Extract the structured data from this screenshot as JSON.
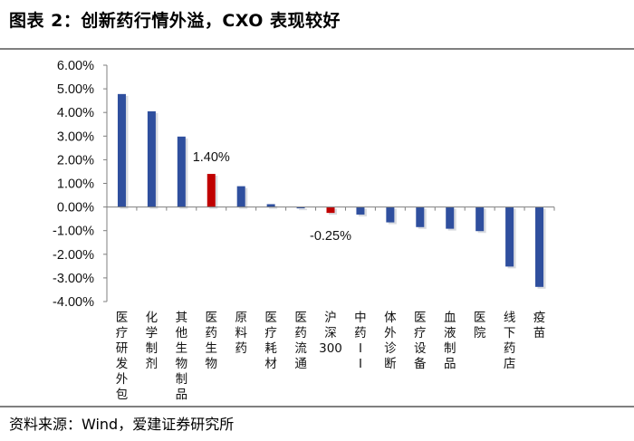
{
  "header": {
    "title": "图表 2：创新药行情外溢，CXO 表现较好"
  },
  "footer": {
    "source": "资料来源：Wind，爱建证券研究所"
  },
  "chart_data": {
    "type": "bar",
    "categories": [
      "医疗研发外包",
      "化学制剂",
      "其他生物制品",
      "医药生物",
      "原料药",
      "医疗耗材",
      "医药流通",
      "沪深300",
      "中药II",
      "体外诊断",
      "医疗设备",
      "血液制品",
      "医院",
      "线下药店",
      "疫苗"
    ],
    "values": [
      4.78,
      4.05,
      2.98,
      1.4,
      0.88,
      0.12,
      -0.03,
      -0.25,
      -0.32,
      -0.65,
      -0.85,
      -0.92,
      -1.02,
      -2.52,
      -3.38
    ],
    "highlight_indices": [
      3,
      7
    ],
    "data_labels": [
      {
        "index": 3,
        "text": "1.40%"
      },
      {
        "index": 7,
        "text": "-0.25%"
      }
    ],
    "yticks": [
      "6.00%",
      "5.00%",
      "4.00%",
      "3.00%",
      "2.00%",
      "1.00%",
      "0.00%",
      "-1.00%",
      "-2.00%",
      "-3.00%",
      "-4.00%"
    ],
    "ylim": [
      -4,
      6
    ],
    "xlabel": "",
    "ylabel": "",
    "grid": false,
    "legend": "none",
    "colors": {
      "bar": "#2f4f9e",
      "highlight": "#c00000",
      "axis": "#7f7f7f"
    }
  }
}
